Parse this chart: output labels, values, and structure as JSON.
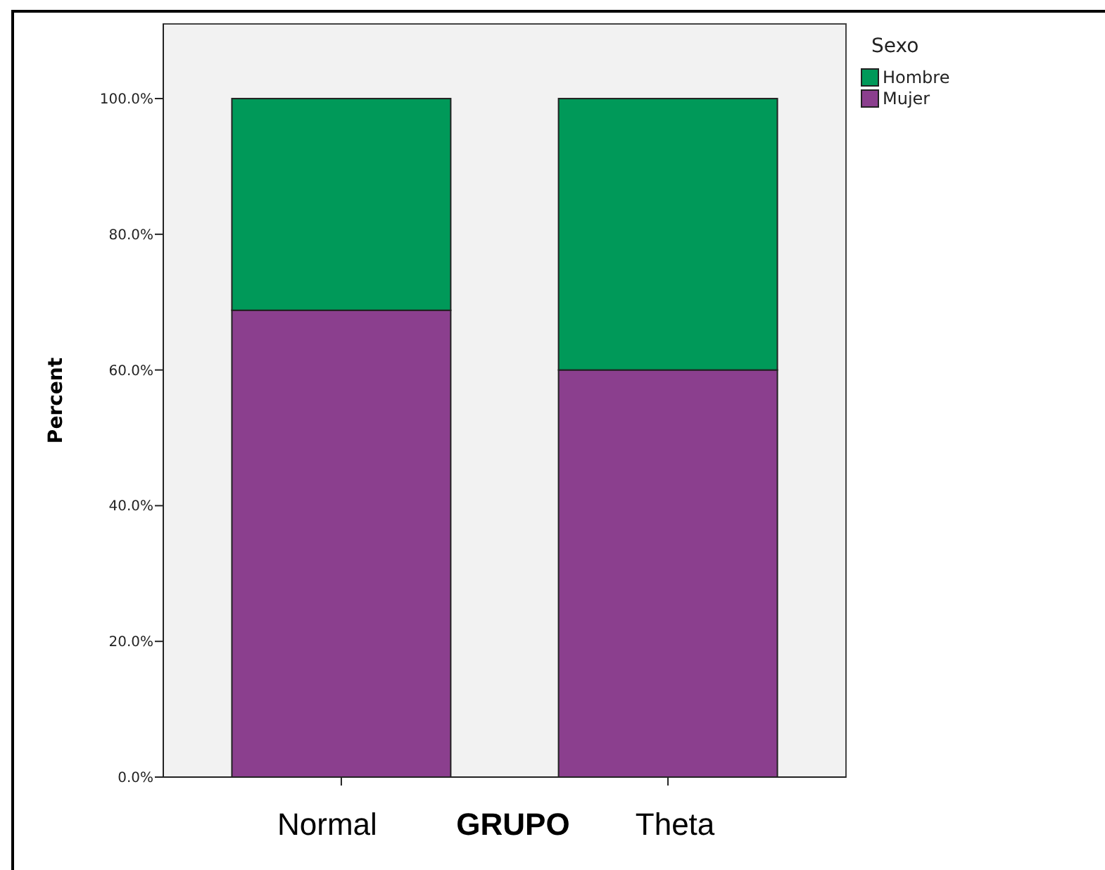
{
  "chart_data": {
    "type": "bar",
    "stacked": true,
    "categories": [
      "Normal",
      "Theta"
    ],
    "xlabel": "GRUPO",
    "ylabel": "Percent",
    "legend_title": "Sexo",
    "legend": "top right",
    "series": [
      {
        "name": "Mujer",
        "color": "#8b3f8e",
        "values": [
          68.8,
          60.0
        ]
      },
      {
        "name": "Hombre",
        "color": "#009959",
        "values": [
          31.2,
          40.0
        ]
      }
    ],
    "ylim": [
      0,
      111
    ],
    "yticks": [
      {
        "value": 0,
        "label": "0.0%"
      },
      {
        "value": 20,
        "label": "20.0%"
      },
      {
        "value": 40,
        "label": "40.0%"
      },
      {
        "value": 60,
        "label": "60.0%"
      },
      {
        "value": 80,
        "label": "80.0%"
      },
      {
        "value": 100,
        "label": "100.0%"
      }
    ]
  }
}
